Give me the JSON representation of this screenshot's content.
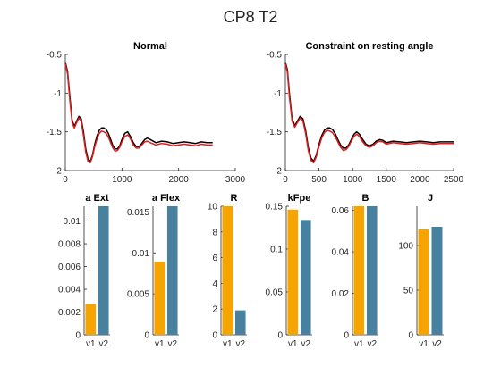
{
  "figure_title": "CP8 T2",
  "chart_data": [
    {
      "type": "line",
      "title": "Normal",
      "xlim": [
        0,
        3000
      ],
      "ylim": [
        -2,
        -0.5
      ],
      "x_ticks": [
        0,
        1000,
        2000,
        3000
      ],
      "y_ticks": [
        -2,
        -1.5,
        -1,
        -0.5
      ],
      "x_tick_labels": [
        "0",
        "1000",
        "2000",
        "3000"
      ],
      "y_tick_labels": [
        "-2",
        "-1.5",
        "-1",
        "-0.5"
      ],
      "grid": false,
      "series": [
        {
          "color": "#000000",
          "x": [
            0,
            40,
            80,
            120,
            160,
            200,
            240,
            280,
            320,
            360,
            400,
            440,
            480,
            520,
            560,
            600,
            640,
            680,
            720,
            760,
            800,
            840,
            880,
            920,
            960,
            1000,
            1050,
            1100,
            1150,
            1200,
            1250,
            1300,
            1350,
            1400,
            1450,
            1500,
            1600,
            1700,
            1800,
            1900,
            2000,
            2100,
            2200,
            2300,
            2400,
            2500,
            2600
          ],
          "y": [
            -0.6,
            -0.72,
            -1.05,
            -1.35,
            -1.43,
            -1.36,
            -1.3,
            -1.33,
            -1.5,
            -1.72,
            -1.85,
            -1.88,
            -1.8,
            -1.66,
            -1.55,
            -1.48,
            -1.45,
            -1.45,
            -1.47,
            -1.52,
            -1.6,
            -1.68,
            -1.72,
            -1.72,
            -1.68,
            -1.6,
            -1.52,
            -1.5,
            -1.56,
            -1.64,
            -1.69,
            -1.69,
            -1.65,
            -1.6,
            -1.58,
            -1.6,
            -1.64,
            -1.62,
            -1.63,
            -1.65,
            -1.64,
            -1.63,
            -1.64,
            -1.65,
            -1.63,
            -1.64,
            -1.64
          ]
        },
        {
          "color": "#e41a1c",
          "x": [
            0,
            40,
            80,
            120,
            160,
            200,
            240,
            280,
            320,
            360,
            400,
            440,
            480,
            520,
            560,
            600,
            640,
            680,
            720,
            760,
            800,
            840,
            880,
            920,
            960,
            1000,
            1050,
            1100,
            1150,
            1200,
            1250,
            1300,
            1350,
            1400,
            1450,
            1500,
            1600,
            1700,
            1800,
            1900,
            2000,
            2100,
            2200,
            2300,
            2400,
            2500,
            2600
          ],
          "y": [
            -0.62,
            -0.75,
            -1.1,
            -1.38,
            -1.45,
            -1.38,
            -1.32,
            -1.36,
            -1.55,
            -1.76,
            -1.88,
            -1.9,
            -1.82,
            -1.69,
            -1.59,
            -1.52,
            -1.49,
            -1.5,
            -1.52,
            -1.57,
            -1.64,
            -1.71,
            -1.75,
            -1.74,
            -1.7,
            -1.63,
            -1.56,
            -1.54,
            -1.59,
            -1.67,
            -1.71,
            -1.71,
            -1.67,
            -1.63,
            -1.62,
            -1.64,
            -1.67,
            -1.65,
            -1.66,
            -1.68,
            -1.67,
            -1.66,
            -1.67,
            -1.68,
            -1.66,
            -1.67,
            -1.67
          ]
        }
      ]
    },
    {
      "type": "line",
      "title": "Constraint on resting angle",
      "xlim": [
        0,
        2500
      ],
      "ylim": [
        -2,
        -0.5
      ],
      "x_ticks": [
        0,
        500,
        1000,
        1500,
        2000,
        2500
      ],
      "y_ticks": [
        -2,
        -1.5,
        -1,
        -0.5
      ],
      "x_tick_labels": [
        "0",
        "500",
        "1000",
        "1500",
        "2000",
        "2500"
      ],
      "y_tick_labels": [
        "-2",
        "-1.5",
        "-1",
        "-0.5"
      ],
      "grid": false,
      "series": [
        {
          "color": "#000000",
          "x": [
            0,
            30,
            60,
            100,
            140,
            180,
            220,
            260,
            300,
            340,
            380,
            420,
            460,
            500,
            540,
            580,
            620,
            660,
            700,
            740,
            780,
            820,
            860,
            900,
            940,
            980,
            1020,
            1060,
            1100,
            1150,
            1200,
            1250,
            1300,
            1350,
            1400,
            1450,
            1500,
            1600,
            1700,
            1800,
            1900,
            2000,
            2100,
            2200,
            2300,
            2400,
            2500
          ],
          "y": [
            -0.6,
            -0.7,
            -1.0,
            -1.33,
            -1.42,
            -1.36,
            -1.3,
            -1.33,
            -1.48,
            -1.7,
            -1.84,
            -1.88,
            -1.8,
            -1.66,
            -1.55,
            -1.48,
            -1.45,
            -1.45,
            -1.47,
            -1.52,
            -1.6,
            -1.67,
            -1.71,
            -1.71,
            -1.67,
            -1.6,
            -1.53,
            -1.5,
            -1.53,
            -1.6,
            -1.66,
            -1.68,
            -1.66,
            -1.62,
            -1.6,
            -1.61,
            -1.64,
            -1.62,
            -1.63,
            -1.64,
            -1.63,
            -1.62,
            -1.63,
            -1.64,
            -1.63,
            -1.63,
            -1.63
          ]
        },
        {
          "color": "#e41a1c",
          "x": [
            0,
            30,
            60,
            100,
            140,
            180,
            220,
            260,
            300,
            340,
            380,
            420,
            460,
            500,
            540,
            580,
            620,
            660,
            700,
            740,
            780,
            820,
            860,
            900,
            940,
            980,
            1020,
            1060,
            1100,
            1150,
            1200,
            1250,
            1300,
            1350,
            1400,
            1450,
            1500,
            1600,
            1700,
            1800,
            1900,
            2000,
            2100,
            2200,
            2300,
            2400,
            2500
          ],
          "y": [
            -0.62,
            -0.73,
            -1.05,
            -1.36,
            -1.44,
            -1.38,
            -1.32,
            -1.36,
            -1.52,
            -1.74,
            -1.87,
            -1.9,
            -1.82,
            -1.69,
            -1.58,
            -1.51,
            -1.48,
            -1.49,
            -1.51,
            -1.56,
            -1.63,
            -1.7,
            -1.74,
            -1.73,
            -1.69,
            -1.62,
            -1.56,
            -1.53,
            -1.56,
            -1.63,
            -1.68,
            -1.7,
            -1.68,
            -1.64,
            -1.62,
            -1.63,
            -1.66,
            -1.64,
            -1.65,
            -1.66,
            -1.65,
            -1.64,
            -1.65,
            -1.66,
            -1.65,
            -1.65,
            -1.65
          ]
        }
      ]
    },
    {
      "type": "bar",
      "title": "a Ext",
      "categories": [
        "v1",
        "v2"
      ],
      "values": [
        0.0027,
        0.0113
      ],
      "colors": [
        "#f6a500",
        "#4880a0"
      ],
      "ylim": [
        0,
        0.0113
      ],
      "y_ticks": [
        0,
        0.002,
        0.004,
        0.006,
        0.008,
        0.01
      ],
      "y_tick_labels": [
        "0",
        "0.002",
        "0.004",
        "0.006",
        "0.008",
        "0.01"
      ]
    },
    {
      "type": "bar",
      "title": "a Flex",
      "categories": [
        "v1",
        "v2"
      ],
      "values": [
        0.0089,
        0.0157
      ],
      "colors": [
        "#f6a500",
        "#4880a0"
      ],
      "ylim": [
        0,
        0.0157
      ],
      "y_ticks": [
        0,
        0.005,
        0.01,
        0.015
      ],
      "y_tick_labels": [
        "0",
        "0.005",
        "0.01",
        "0.015"
      ]
    },
    {
      "type": "bar",
      "title": "R",
      "categories": [
        "v1",
        "v2"
      ],
      "values": [
        10,
        1.9
      ],
      "colors": [
        "#f6a500",
        "#4880a0"
      ],
      "ylim": [
        0,
        10
      ],
      "y_ticks": [
        0,
        2,
        4,
        6,
        8,
        10
      ],
      "y_tick_labels": [
        "0",
        "2",
        "4",
        "6",
        "8",
        "10"
      ]
    },
    {
      "type": "bar",
      "title": "kFpe",
      "categories": [
        "v1",
        "v2"
      ],
      "values": [
        0.146,
        0.134
      ],
      "colors": [
        "#f6a500",
        "#4880a0"
      ],
      "ylim": [
        0,
        0.15
      ],
      "y_ticks": [
        0,
        0.05,
        0.1,
        0.15
      ],
      "y_tick_labels": [
        "0",
        "0.05",
        "0.1",
        "0.15"
      ]
    },
    {
      "type": "bar",
      "title": "B",
      "categories": [
        "v1",
        "v2"
      ],
      "values": [
        0.062,
        0.062
      ],
      "colors": [
        "#f6a500",
        "#4880a0"
      ],
      "ylim": [
        0,
        0.062
      ],
      "y_ticks": [
        0,
        0.02,
        0.04,
        0.06
      ],
      "y_tick_labels": [
        "0",
        "0.02",
        "0.04",
        "0.06"
      ]
    },
    {
      "type": "bar",
      "title": "J",
      "categories": [
        "v1",
        "v2"
      ],
      "values": [
        118,
        121
      ],
      "colors": [
        "#f6a500",
        "#4880a0"
      ],
      "ylim": [
        0,
        144
      ],
      "y_ticks": [
        0,
        50,
        100
      ],
      "y_tick_labels": [
        "0",
        "50",
        "100"
      ]
    }
  ]
}
